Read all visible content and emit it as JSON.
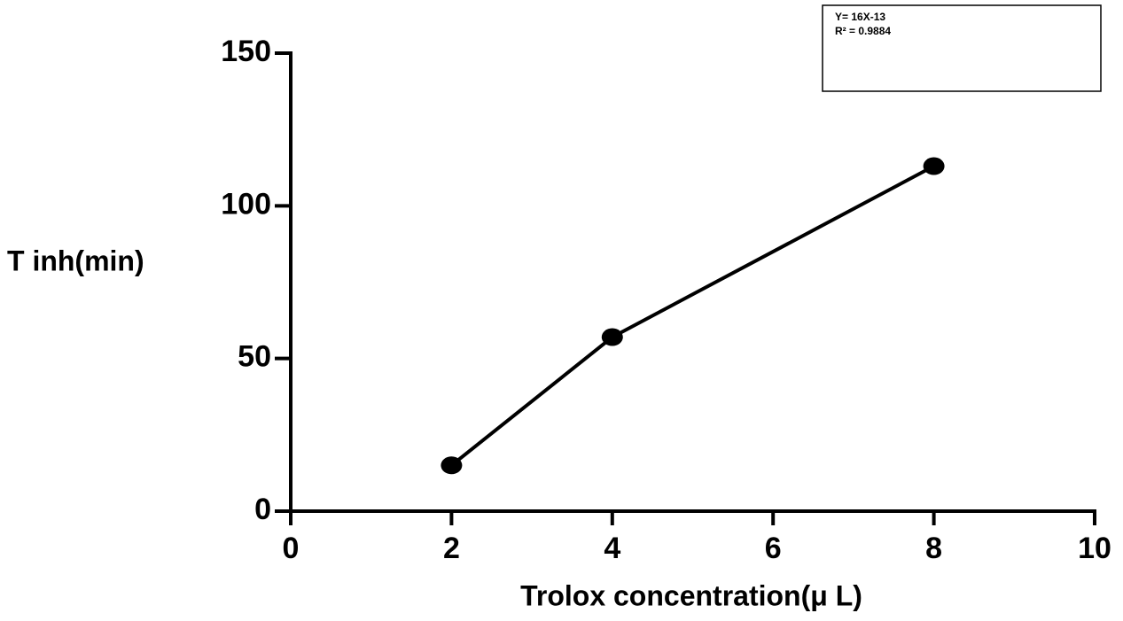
{
  "chart_data": {
    "type": "line",
    "x_label": "Trolox concentration(μ L)",
    "y_label": "T inh(min)",
    "x": [
      2,
      4,
      8
    ],
    "values": [
      15,
      57,
      113
    ],
    "color": "#000000",
    "markers": true,
    "xlim": [
      0,
      10
    ],
    "xticks": [
      0,
      2,
      4,
      6,
      8,
      10
    ],
    "ylim": [
      0,
      150
    ],
    "yticks": [
      0,
      50,
      100,
      150
    ],
    "grid": false,
    "annotations": [
      "Y= 16X-13",
      "R² = 0.9884"
    ]
  }
}
